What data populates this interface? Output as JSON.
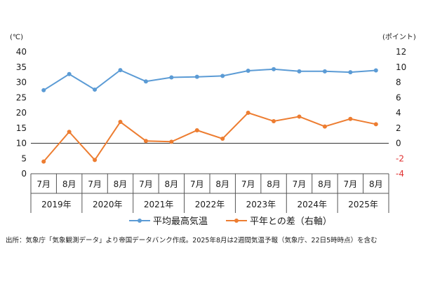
{
  "chart_data": {
    "type": "line",
    "left_unit": "(℃)",
    "right_unit": "(ポイント)",
    "months": [
      "7月",
      "8月",
      "7月",
      "8月",
      "7月",
      "8月",
      "7月",
      "8月",
      "7月",
      "8月",
      "7月",
      "8月",
      "7月",
      "8月"
    ],
    "years": [
      "2019年",
      "2020年",
      "2021年",
      "2022年",
      "2023年",
      "2024年",
      "2025年"
    ],
    "y_left": {
      "min": 0,
      "max": 40,
      "ticks": [
        "0",
        "5",
        "10",
        "15",
        "20",
        "25",
        "30",
        "35",
        "40"
      ]
    },
    "y_right": {
      "min": -4,
      "max": 12,
      "ticks": [
        "-4",
        "-2",
        "0",
        "2",
        "4",
        "6",
        "8",
        "10",
        "12"
      ]
    },
    "series": [
      {
        "name": "平均最高気温",
        "axis": "left",
        "color": "#5b9bd5",
        "values": [
          27.4,
          32.7,
          27.6,
          34.0,
          30.3,
          31.6,
          31.8,
          32.1,
          33.8,
          34.3,
          33.6,
          33.6,
          33.3,
          33.9
        ]
      },
      {
        "name": "平年との差（右軸）",
        "axis": "right",
        "color": "#ed7d31",
        "values": [
          -2.4,
          1.5,
          -2.2,
          2.8,
          0.3,
          0.2,
          1.7,
          0.6,
          4.0,
          2.9,
          3.5,
          2.2,
          3.2,
          2.5
        ]
      }
    ]
  },
  "footer": {
    "source": "出所：気象庁「気象観測データ」より帝国データバンク作成。2025年8月は2週間気温予報（気象庁、22日5時時点）を含む"
  }
}
